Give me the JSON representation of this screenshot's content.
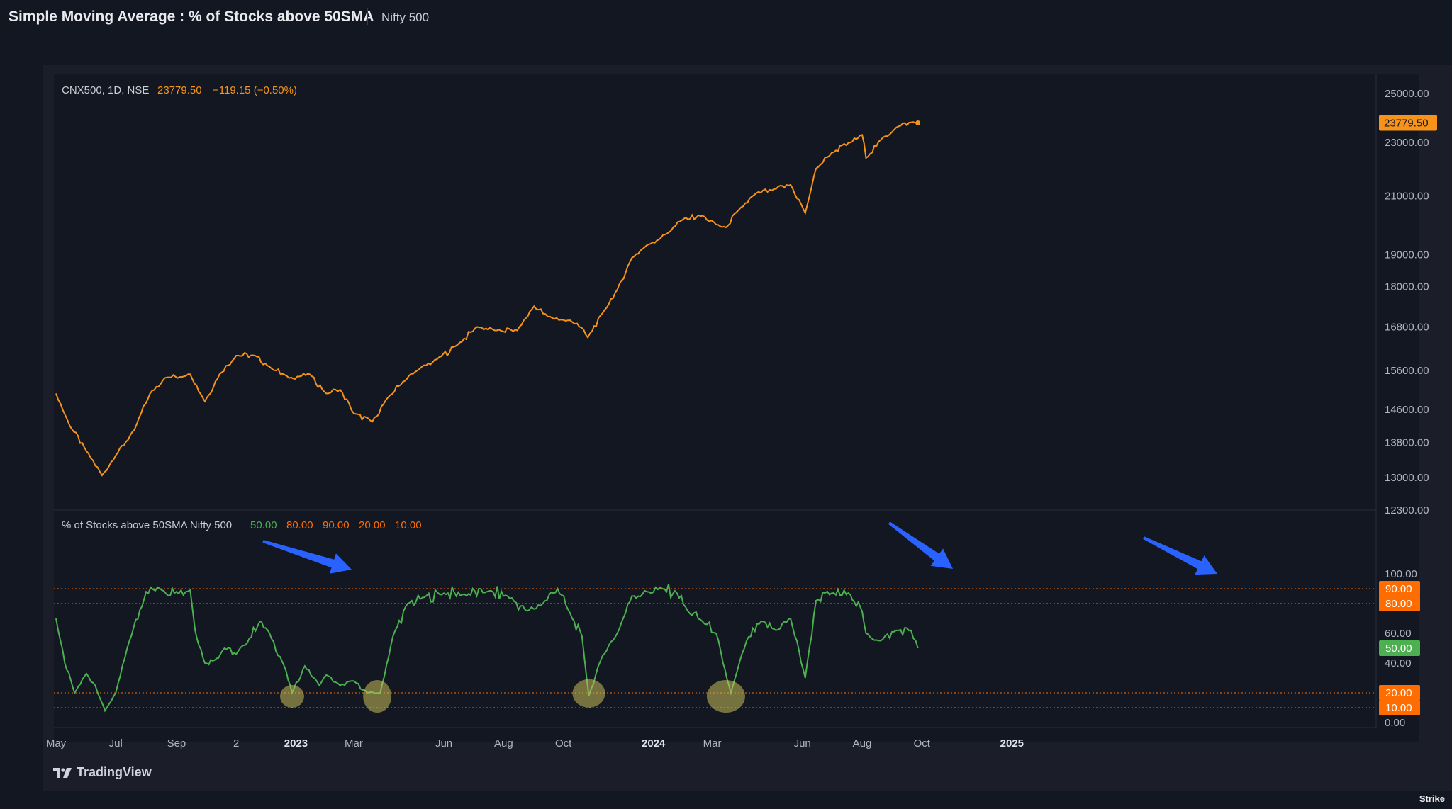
{
  "header": {
    "title": "Simple Moving Average : % of Stocks above 50SMA",
    "index_name": "Nifty 500"
  },
  "main_pane": {
    "symbol_label": "CNX500, 1D, NSE",
    "last_price": "23779.50",
    "change": "−119.15 (−0.50%)",
    "price_badge": "23779.50",
    "line_color": "#f7931a"
  },
  "osc_pane": {
    "label": "% of Stocks above 50SMA Nifty 500",
    "level_values": [
      "50.00",
      "80.00",
      "90.00",
      "20.00",
      "10.00"
    ],
    "level_colors": [
      "#4caf50",
      "#ff6d00",
      "#ff6d00",
      "#ff6d00",
      "#ff6d00"
    ],
    "line_color": "#4caf50",
    "badges": [
      "90.00",
      "80.00",
      "50.00",
      "20.00",
      "10.00"
    ],
    "badge_colors": [
      "#ff6d00",
      "#ff6d00",
      "#4caf50",
      "#ff6d00",
      "#ff6d00"
    ]
  },
  "brand": "TradingView",
  "watermark": "Strike",
  "chart_data": [
    {
      "type": "line",
      "title": "CNX500, 1D, NSE",
      "y_scale": "log",
      "ylim": [
        12300,
        25500
      ],
      "y_ticks": [
        25000,
        23000,
        21000,
        19000,
        18000,
        16800,
        15600,
        14600,
        13800,
        13000,
        12300
      ],
      "y_tick_labels": [
        "25000.00",
        "23000.00",
        "21000.00",
        "19000.00",
        "18000.00",
        "16800.00",
        "15600.00",
        "14600.00",
        "13800.00",
        "13000.00",
        "12300.00"
      ],
      "x_ticks": [
        "May",
        "Jul",
        "Sep",
        "2",
        "2023",
        "Mar",
        "Jun",
        "Aug",
        "Oct",
        "2024",
        "Mar",
        "Jun",
        "Aug",
        "Oct",
        "2025"
      ],
      "series": [
        {
          "x": [
            "2022-05-01",
            "2022-05-15",
            "2022-06-01",
            "2022-06-17",
            "2022-07-01",
            "2022-07-20",
            "2022-08-05",
            "2022-08-20",
            "2022-09-15",
            "2022-09-30",
            "2022-10-15",
            "2022-11-01",
            "2022-11-20",
            "2022-12-05",
            "2022-12-25",
            "2023-01-15",
            "2023-02-01",
            "2023-02-15",
            "2023-03-01",
            "2023-03-20",
            "2023-04-05",
            "2023-04-20",
            "2023-05-05",
            "2023-05-25",
            "2023-06-15",
            "2023-07-05",
            "2023-07-25",
            "2023-08-15",
            "2023-09-01",
            "2023-09-15",
            "2023-10-01",
            "2023-10-15",
            "2023-10-26",
            "2023-11-10",
            "2023-11-25",
            "2023-12-10",
            "2023-12-25",
            "2024-01-15",
            "2024-02-01",
            "2024-02-20",
            "2024-03-05",
            "2024-03-15",
            "2024-03-28",
            "2024-04-15",
            "2024-05-01",
            "2024-05-20",
            "2024-06-04",
            "2024-06-15",
            "2024-07-01",
            "2024-07-20",
            "2024-08-01",
            "2024-08-05",
            "2024-08-20",
            "2024-09-05",
            "2024-09-20",
            "2024-09-27"
          ],
          "values": [
            15000,
            14200,
            13600,
            13050,
            13500,
            14100,
            15000,
            15400,
            15500,
            14800,
            15500,
            16000,
            16000,
            15700,
            15400,
            15500,
            15000,
            15100,
            14500,
            14300,
            14900,
            15300,
            15600,
            15900,
            16300,
            16800,
            16700,
            16700,
            17400,
            17100,
            17000,
            16900,
            16500,
            17200,
            17900,
            18900,
            19300,
            19700,
            20200,
            20300,
            20000,
            19900,
            20500,
            21100,
            21200,
            21400,
            20400,
            22000,
            22600,
            23000,
            23300,
            22400,
            23100,
            23600,
            23800,
            23779.5
          ]
        }
      ]
    },
    {
      "type": "line",
      "title": "% of Stocks above 50SMA Nifty 500",
      "ylim": [
        0,
        100
      ],
      "y_ticks": [
        100,
        60,
        40,
        0
      ],
      "y_tick_labels": [
        "100.00",
        "60.00",
        "40.00",
        "0.00"
      ],
      "levels": [
        90,
        80,
        50,
        20,
        10
      ],
      "series": [
        {
          "x": [
            "2022-05-01",
            "2022-05-10",
            "2022-05-20",
            "2022-06-01",
            "2022-06-10",
            "2022-06-20",
            "2022-07-01",
            "2022-07-15",
            "2022-08-01",
            "2022-08-15",
            "2022-09-01",
            "2022-09-15",
            "2022-09-20",
            "2022-09-30",
            "2022-10-10",
            "2022-10-20",
            "2022-11-01",
            "2022-11-10",
            "2022-11-25",
            "2022-12-05",
            "2022-12-20",
            "2022-12-28",
            "2023-01-10",
            "2023-01-25",
            "2023-02-01",
            "2023-02-15",
            "2023-03-01",
            "2023-03-15",
            "2023-03-28",
            "2023-04-10",
            "2023-04-25",
            "2023-05-10",
            "2023-06-01",
            "2023-06-20",
            "2023-07-15",
            "2023-08-05",
            "2023-08-25",
            "2023-09-10",
            "2023-09-25",
            "2023-10-10",
            "2023-10-20",
            "2023-10-27",
            "2023-11-10",
            "2023-11-25",
            "2023-12-10",
            "2023-12-25",
            "2024-01-10",
            "2024-01-25",
            "2024-02-05",
            "2024-02-20",
            "2024-03-05",
            "2024-03-12",
            "2024-03-20",
            "2024-04-05",
            "2024-04-20",
            "2024-05-05",
            "2024-05-20",
            "2024-06-04",
            "2024-06-15",
            "2024-07-01",
            "2024-07-20",
            "2024-07-30",
            "2024-08-05",
            "2024-08-20",
            "2024-09-05",
            "2024-09-20",
            "2024-09-27"
          ],
          "values": [
            70,
            40,
            20,
            33,
            25,
            8,
            20,
            55,
            88,
            90,
            88,
            89,
            62,
            40,
            42,
            50,
            46,
            52,
            68,
            60,
            38,
            20,
            38,
            25,
            32,
            25,
            28,
            20,
            20,
            58,
            80,
            84,
            87,
            86,
            88,
            85,
            75,
            80,
            90,
            70,
            58,
            18,
            45,
            60,
            85,
            88,
            90,
            87,
            75,
            68,
            60,
            40,
            20,
            55,
            68,
            62,
            70,
            30,
            82,
            87,
            86,
            78,
            60,
            55,
            62,
            62,
            50
          ]
        }
      ]
    }
  ]
}
